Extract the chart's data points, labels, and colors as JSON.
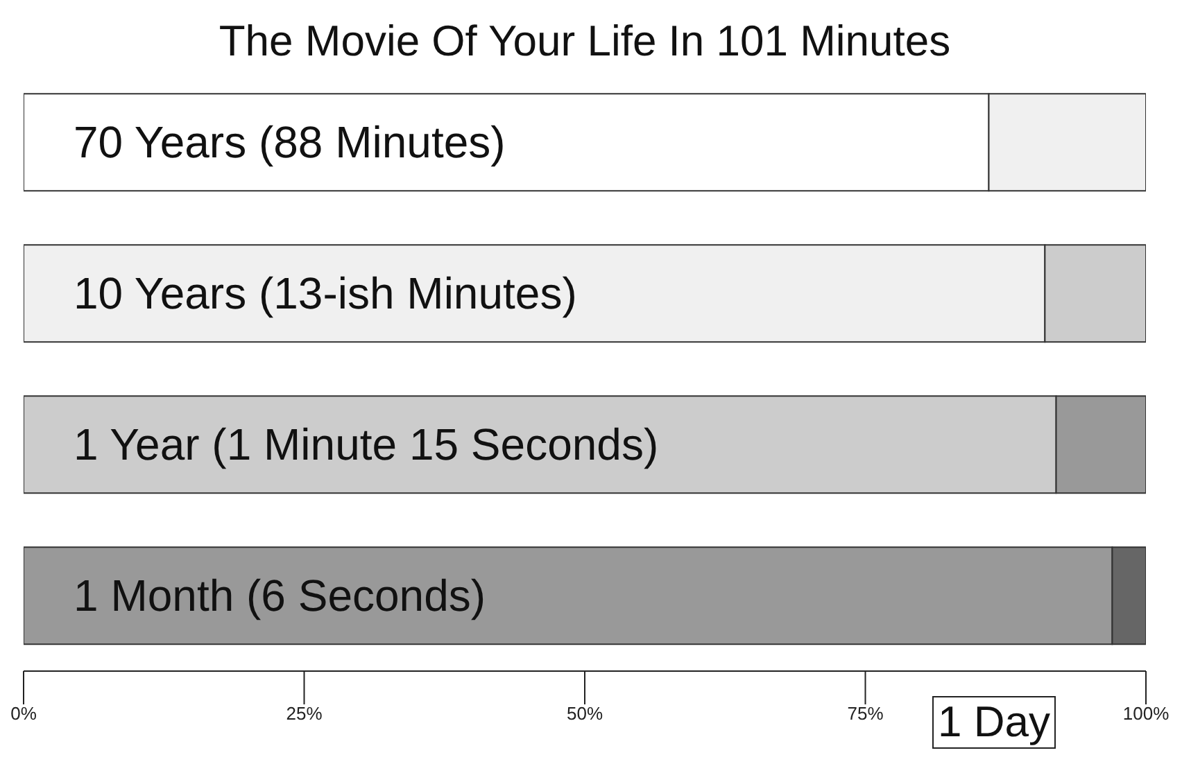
{
  "chart_data": {
    "type": "bar",
    "title": "The Movie Of Your Life In 101 Minutes",
    "orientation": "horizontal",
    "stacked": true,
    "categories": [
      "70 Years (88 Minutes)",
      "10 Years (13-ish Minutes)",
      "1 Year (1 Minute 15 Seconds)",
      "1 Month (6 Seconds)"
    ],
    "series": [
      {
        "colors": [
          "#ffffff",
          "#f0f0f0",
          "#cccccc",
          "#999999"
        ],
        "values": [
          86,
          91,
          92,
          97
        ]
      },
      {
        "colors": [
          "#f0f0f0",
          "#cccccc",
          "#999999",
          "#666666"
        ],
        "values": [
          14,
          9,
          8,
          3
        ]
      }
    ],
    "xlim": [
      0,
      100
    ],
    "xticks": [
      {
        "value": 0,
        "label": "0%"
      },
      {
        "value": 25,
        "label": "25%"
      },
      {
        "value": 50,
        "label": "50%"
      },
      {
        "value": 75,
        "label": "75%"
      },
      {
        "value": 100,
        "label": "100%"
      }
    ],
    "annotations": [
      "1 Day"
    ]
  }
}
